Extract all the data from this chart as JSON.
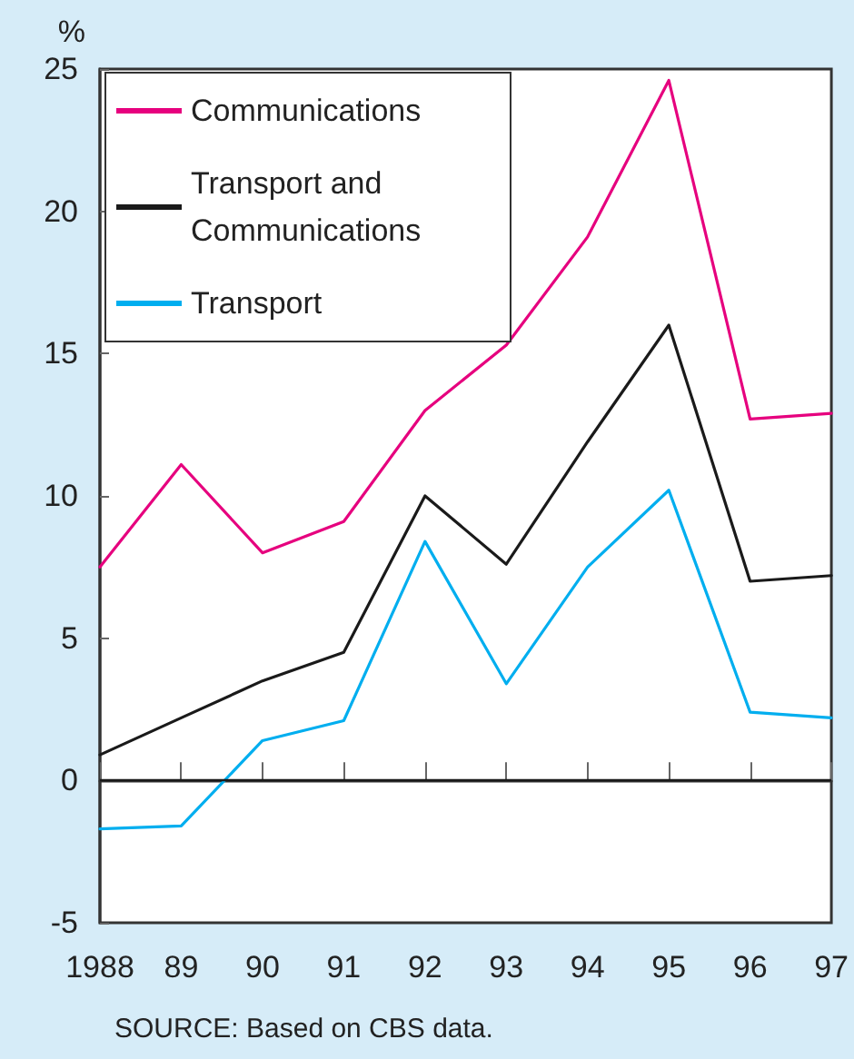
{
  "chart_data": {
    "type": "line",
    "ylabel": "%",
    "categories": [
      "1988",
      "89",
      "90",
      "91",
      "92",
      "93",
      "94",
      "95",
      "96",
      "97"
    ],
    "series": [
      {
        "name": "Communications",
        "color": "#e6007e",
        "values": [
          7.5,
          11.1,
          8.0,
          9.1,
          13.0,
          15.3,
          19.1,
          24.6,
          12.7,
          12.9
        ]
      },
      {
        "name": "Transport and Communications",
        "color": "#1a1a1a",
        "values": [
          0.9,
          2.2,
          3.5,
          4.5,
          10.0,
          7.6,
          11.9,
          16.0,
          7.0,
          7.2
        ]
      },
      {
        "name": "Transport",
        "color": "#00aeef",
        "values": [
          -1.7,
          -1.6,
          1.4,
          2.1,
          8.4,
          3.4,
          7.5,
          10.2,
          2.4,
          2.2
        ]
      }
    ],
    "ylim": [
      -5,
      25
    ],
    "yticks": [
      -5,
      0,
      5,
      10,
      15,
      20,
      25
    ],
    "ref_lines": [
      {
        "axis": "y",
        "value": 0,
        "color": "#1a1a1a"
      }
    ],
    "annotations": [
      "SOURCE: Based on CBS data."
    ],
    "grid": false,
    "legend": "top left",
    "marker": "none",
    "line_style": "solid"
  }
}
